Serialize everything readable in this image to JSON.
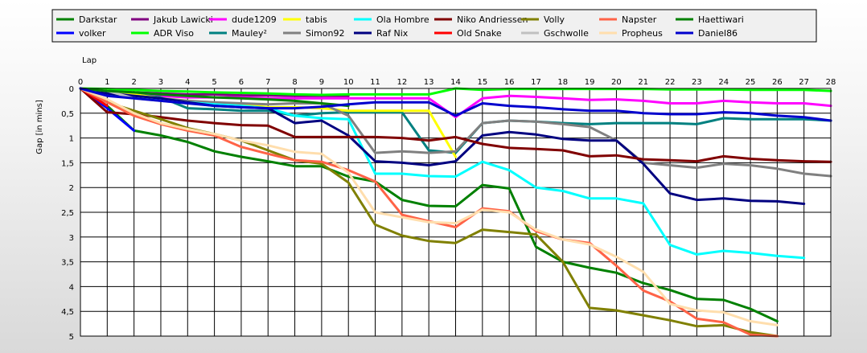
{
  "chart_data": {
    "type": "line",
    "xlabel": "Lap",
    "ylabel": "Gap [in mins]",
    "xlim": [
      0,
      28
    ],
    "ylim": [
      0,
      5
    ],
    "x_ticks": [
      0,
      1,
      2,
      3,
      4,
      5,
      6,
      7,
      8,
      9,
      10,
      11,
      12,
      13,
      14,
      15,
      16,
      17,
      18,
      19,
      20,
      21,
      22,
      23,
      24,
      25,
      26,
      27,
      28
    ],
    "y_ticks": [
      {
        "v": 0,
        "label": "0"
      },
      {
        "v": 0.5,
        "label": "0,5"
      },
      {
        "v": 1,
        "label": "1"
      },
      {
        "v": 1.5,
        "label": "1,5"
      },
      {
        "v": 2,
        "label": "2"
      },
      {
        "v": 2.5,
        "label": "2,5"
      },
      {
        "v": 3,
        "label": "3"
      },
      {
        "v": 3.5,
        "label": "3,5"
      },
      {
        "v": 4,
        "label": "4"
      },
      {
        "v": 4.5,
        "label": "4,5"
      },
      {
        "v": 5,
        "label": "5"
      }
    ],
    "grid": true,
    "legend_position": "top",
    "series": [
      {
        "name": "Darkstar",
        "color": "#008000",
        "values": [
          0,
          0.35,
          0.85,
          0.95,
          1.08,
          1.27,
          1.38,
          1.47,
          1.57,
          1.57,
          1.78,
          1.88,
          2.25,
          2.37,
          2.38,
          1.95,
          2.02,
          3.2,
          3.5,
          3.62,
          3.72,
          3.93,
          4.07,
          4.25,
          4.27,
          4.45,
          4.7
        ]
      },
      {
        "name": "volker",
        "color": "#0000ff",
        "values": [
          0,
          0.4,
          0.85
        ]
      },
      {
        "name": "Jakub Lawicki",
        "color": "#800080",
        "values": [
          0,
          0.05,
          0.08,
          0.1,
          0.12,
          0.12,
          0.14,
          0.14,
          0.15,
          0.15,
          0.15
        ]
      },
      {
        "name": "ADR Viso",
        "color": "#00ff00",
        "values": [
          0,
          0.01,
          0.03,
          0.05,
          0.06,
          0.08,
          0.09,
          0.1,
          0.12,
          0.13,
          0.12,
          0.12,
          0.12,
          0.12,
          0,
          0.03,
          0.01,
          0.01,
          0.01,
          0.01,
          0.01,
          0.01,
          0.02,
          0.02,
          0.02,
          0.03,
          0.03,
          0.03,
          0.05
        ]
      },
      {
        "name": "dude1209",
        "color": "#ff00ff",
        "values": [
          0,
          0.1,
          0.13,
          0.15,
          0.18,
          0.18,
          0.18,
          0.2,
          0.2,
          0.2,
          0.2,
          0.2,
          0.2,
          0.2,
          0.58,
          0.2,
          0.15,
          0.17,
          0.2,
          0.23,
          0.22,
          0.25,
          0.3,
          0.3,
          0.25,
          0.28,
          0.3,
          0.3,
          0.35
        ]
      },
      {
        "name": "Mauley²",
        "color": "#008080",
        "values": [
          0,
          0.08,
          0.12,
          0.18,
          0.4,
          0.42,
          0.45,
          0.45,
          0.55,
          0.5,
          0.48,
          0.48,
          0.48,
          1.25,
          1.3,
          0.7,
          0.65,
          0.67,
          0.7,
          0.72,
          0.7,
          0.7,
          0.7,
          0.72,
          0.6,
          0.62,
          0.62,
          0.62,
          0.65
        ]
      },
      {
        "name": "tabis",
        "color": "#ffff00",
        "values": [
          0,
          0.05,
          0.12,
          0.2,
          0.25,
          0.3,
          0.32,
          0.38,
          0.38,
          0.4,
          0.45,
          0.45,
          0.45,
          0.45,
          1.38
        ]
      },
      {
        "name": "Simon92",
        "color": "#808080",
        "values": [
          0,
          0.08,
          0.15,
          0.2,
          0.25,
          0.28,
          0.3,
          0.32,
          0.3,
          0.3,
          0.55,
          1.3,
          1.27,
          1.3,
          1.27,
          0.7,
          0.65,
          0.67,
          0.72,
          0.78,
          1.05,
          1.5,
          1.55,
          1.6,
          1.52,
          1.55,
          1.62,
          1.72,
          1.77
        ]
      },
      {
        "name": "Ola Hombre",
        "color": "#00ffff",
        "values": [
          0,
          0.12,
          0.18,
          0.22,
          0.28,
          0.32,
          0.35,
          0.4,
          0.55,
          0.6,
          0.62,
          1.72,
          1.72,
          1.77,
          1.78,
          1.48,
          1.65,
          2.0,
          2.07,
          2.22,
          2.22,
          2.32,
          3.16,
          3.35,
          3.28,
          3.32,
          3.38,
          3.42
        ]
      },
      {
        "name": "Raf Nix",
        "color": "#000080",
        "values": [
          0,
          0.1,
          0.15,
          0.2,
          0.28,
          0.35,
          0.38,
          0.4,
          0.7,
          0.65,
          0.95,
          1.47,
          1.5,
          1.55,
          1.47,
          0.95,
          0.88,
          0.93,
          1.02,
          1.05,
          1.05,
          1.52,
          2.12,
          2.25,
          2.22,
          2.27,
          2.28,
          2.33
        ]
      },
      {
        "name": "Niko Andriessen",
        "color": "#800000",
        "values": [
          0,
          0.48,
          0.52,
          0.58,
          0.65,
          0.7,
          0.74,
          0.75,
          0.98,
          0.98,
          0.98,
          0.98,
          1.0,
          1.05,
          0.98,
          1.12,
          1.2,
          1.22,
          1.25,
          1.37,
          1.35,
          1.43,
          1.45,
          1.47,
          1.37,
          1.42,
          1.45,
          1.47,
          1.48
        ]
      },
      {
        "name": "Old Snake",
        "color": "#ff0000",
        "values": [
          0,
          0.35
        ]
      },
      {
        "name": "Volly",
        "color": "#808000",
        "values": [
          0,
          0.28,
          0.45,
          0.62,
          0.8,
          0.92,
          1.05,
          1.25,
          1.45,
          1.52,
          1.9,
          2.75,
          2.97,
          3.08,
          3.12,
          2.85,
          2.9,
          2.95,
          3.5,
          4.43,
          4.48,
          4.58,
          4.68,
          4.8,
          4.78,
          4.92,
          5.0
        ]
      },
      {
        "name": "Gschwolle",
        "color": "#c0c0c0",
        "values": [
          0,
          0.05,
          0.2,
          0.25,
          0.3
        ]
      },
      {
        "name": "Napster",
        "color": "#ff6347",
        "values": [
          0,
          0.28,
          0.55,
          0.72,
          0.85,
          0.95,
          1.18,
          1.32,
          1.45,
          1.48,
          1.65,
          1.88,
          2.55,
          2.68,
          2.8,
          2.42,
          2.48,
          2.88,
          3.05,
          3.12,
          3.58,
          4.08,
          4.3,
          4.65,
          4.72,
          4.97,
          5.0
        ]
      },
      {
        "name": "Propheus",
        "color": "#ffdead",
        "values": [
          0,
          0.22,
          0.5,
          0.7,
          0.82,
          0.92,
          1.05,
          1.15,
          1.28,
          1.32,
          1.7,
          2.5,
          2.6,
          2.7,
          2.72,
          2.45,
          2.5,
          2.85,
          3.05,
          3.15,
          3.4,
          3.7,
          4.35,
          4.48,
          4.52,
          4.7,
          4.78
        ]
      },
      {
        "name": "Haettiwari",
        "color": "#008000",
        "values": [
          0,
          0.05,
          0.08,
          0.12,
          0.15,
          0.18,
          0.2,
          0.22,
          0.25,
          0.3,
          0.35
        ]
      },
      {
        "name": "Daniel86",
        "color": "#0000cd",
        "values": [
          0,
          0.15,
          0.2,
          0.25,
          0.3,
          0.35,
          0.38,
          0.4,
          0.4,
          0.37,
          0.32,
          0.28,
          0.28,
          0.28,
          0.55,
          0.3,
          0.35,
          0.38,
          0.42,
          0.45,
          0.45,
          0.5,
          0.52,
          0.52,
          0.48,
          0.5,
          0.55,
          0.58,
          0.65
        ]
      }
    ]
  }
}
